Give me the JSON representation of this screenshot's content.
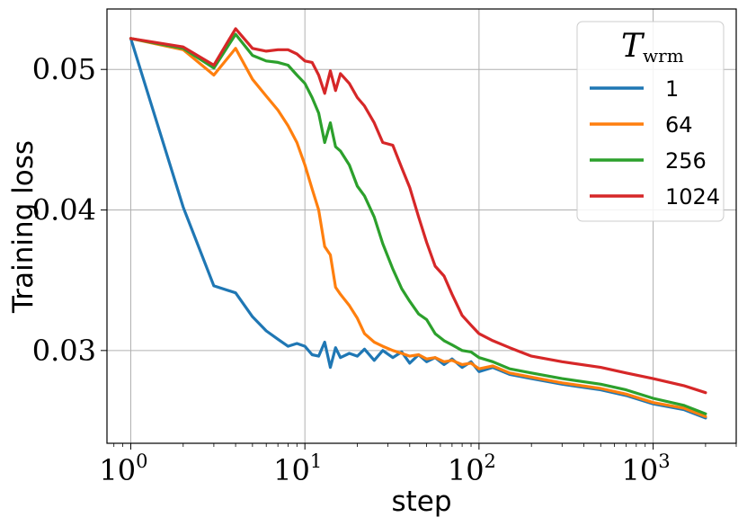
{
  "chart_data": {
    "type": "line",
    "xlabel": "step",
    "ylabel": "Training loss",
    "xscale": "log",
    "xlim": [
      0.73,
      3000
    ],
    "ylim": [
      0.0234,
      0.0543
    ],
    "grid": true,
    "x_ticks": [
      {
        "base": "10",
        "exp": "0",
        "value": 1
      },
      {
        "base": "10",
        "exp": "1",
        "value": 10
      },
      {
        "base": "10",
        "exp": "2",
        "value": 100
      },
      {
        "base": "10",
        "exp": "3",
        "value": 1000
      }
    ],
    "y_ticks": [
      {
        "label": "0.03",
        "value": 0.03
      },
      {
        "label": "0.04",
        "value": 0.04
      },
      {
        "label": "0.05",
        "value": 0.05
      }
    ],
    "legend": {
      "title_main": "T",
      "title_sub": "wrm",
      "placement": "top-right"
    },
    "series": [
      {
        "name": "1",
        "color": "#1f77b4",
        "x": [
          1,
          2,
          3,
          4,
          5,
          6,
          7,
          8,
          9,
          10,
          11,
          12,
          13,
          14,
          15,
          16,
          18,
          20,
          22,
          25,
          28,
          32,
          36,
          40,
          45,
          50,
          56,
          63,
          70,
          80,
          90,
          100,
          120,
          150,
          200,
          300,
          500,
          700,
          1000,
          1500,
          2000
        ],
        "y": [
          0.0522,
          0.0402,
          0.0346,
          0.0341,
          0.0324,
          0.0314,
          0.0308,
          0.0303,
          0.0305,
          0.0303,
          0.0297,
          0.0296,
          0.0306,
          0.0288,
          0.0302,
          0.0295,
          0.0298,
          0.0296,
          0.0301,
          0.0293,
          0.03,
          0.0295,
          0.0299,
          0.0291,
          0.0297,
          0.0292,
          0.0295,
          0.029,
          0.0294,
          0.0288,
          0.0292,
          0.0285,
          0.0288,
          0.0283,
          0.028,
          0.0276,
          0.0272,
          0.0268,
          0.0262,
          0.0258,
          0.0252
        ]
      },
      {
        "name": "64",
        "color": "#ff7f0e",
        "x": [
          1,
          2,
          3,
          4,
          5,
          6,
          7,
          8,
          9,
          10,
          11,
          12,
          13,
          14,
          15,
          16,
          18,
          20,
          22,
          25,
          28,
          32,
          36,
          40,
          45,
          50,
          56,
          63,
          70,
          80,
          90,
          100,
          120,
          150,
          200,
          300,
          500,
          700,
          1000,
          1500,
          2000
        ],
        "y": [
          0.0522,
          0.0514,
          0.0496,
          0.0515,
          0.0493,
          0.0481,
          0.0471,
          0.046,
          0.0448,
          0.0432,
          0.0415,
          0.04,
          0.0374,
          0.0368,
          0.0345,
          0.034,
          0.0332,
          0.0323,
          0.0312,
          0.0306,
          0.0303,
          0.03,
          0.0298,
          0.0296,
          0.0297,
          0.0294,
          0.0295,
          0.0292,
          0.0293,
          0.029,
          0.0291,
          0.0287,
          0.0289,
          0.0284,
          0.0281,
          0.0277,
          0.0273,
          0.0269,
          0.0263,
          0.0259,
          0.0253
        ]
      },
      {
        "name": "256",
        "color": "#2ca02c",
        "x": [
          1,
          2,
          3,
          4,
          5,
          6,
          7,
          8,
          9,
          10,
          11,
          12,
          13,
          14,
          15,
          16,
          18,
          20,
          22,
          25,
          28,
          32,
          36,
          40,
          45,
          50,
          56,
          63,
          70,
          80,
          90,
          100,
          120,
          150,
          200,
          300,
          500,
          700,
          1000,
          1500,
          2000
        ],
        "y": [
          0.0522,
          0.0515,
          0.0501,
          0.0525,
          0.051,
          0.0506,
          0.0505,
          0.0503,
          0.0496,
          0.049,
          0.048,
          0.0469,
          0.0448,
          0.0462,
          0.0445,
          0.0442,
          0.0432,
          0.0417,
          0.041,
          0.0395,
          0.0376,
          0.0358,
          0.0344,
          0.0335,
          0.0326,
          0.0322,
          0.0312,
          0.0307,
          0.0304,
          0.03,
          0.0299,
          0.0295,
          0.0292,
          0.0287,
          0.0284,
          0.028,
          0.0276,
          0.0272,
          0.0266,
          0.0261,
          0.0255
        ]
      },
      {
        "name": "1024",
        "color": "#d62728",
        "x": [
          1,
          2,
          3,
          4,
          5,
          6,
          7,
          8,
          9,
          10,
          11,
          12,
          13,
          14,
          15,
          16,
          18,
          20,
          22,
          25,
          28,
          32,
          36,
          40,
          45,
          50,
          56,
          63,
          70,
          80,
          90,
          100,
          120,
          150,
          200,
          300,
          500,
          700,
          1000,
          1500,
          2000
        ],
        "y": [
          0.0522,
          0.0516,
          0.0503,
          0.0529,
          0.0515,
          0.0513,
          0.0514,
          0.0514,
          0.0511,
          0.0506,
          0.0505,
          0.0496,
          0.0483,
          0.0499,
          0.0485,
          0.0497,
          0.049,
          0.048,
          0.0474,
          0.0462,
          0.0448,
          0.0446,
          0.043,
          0.0416,
          0.0395,
          0.0377,
          0.036,
          0.0353,
          0.034,
          0.0325,
          0.0318,
          0.0312,
          0.0307,
          0.0302,
          0.0296,
          0.0292,
          0.0288,
          0.0284,
          0.028,
          0.0275,
          0.027
        ]
      }
    ]
  }
}
